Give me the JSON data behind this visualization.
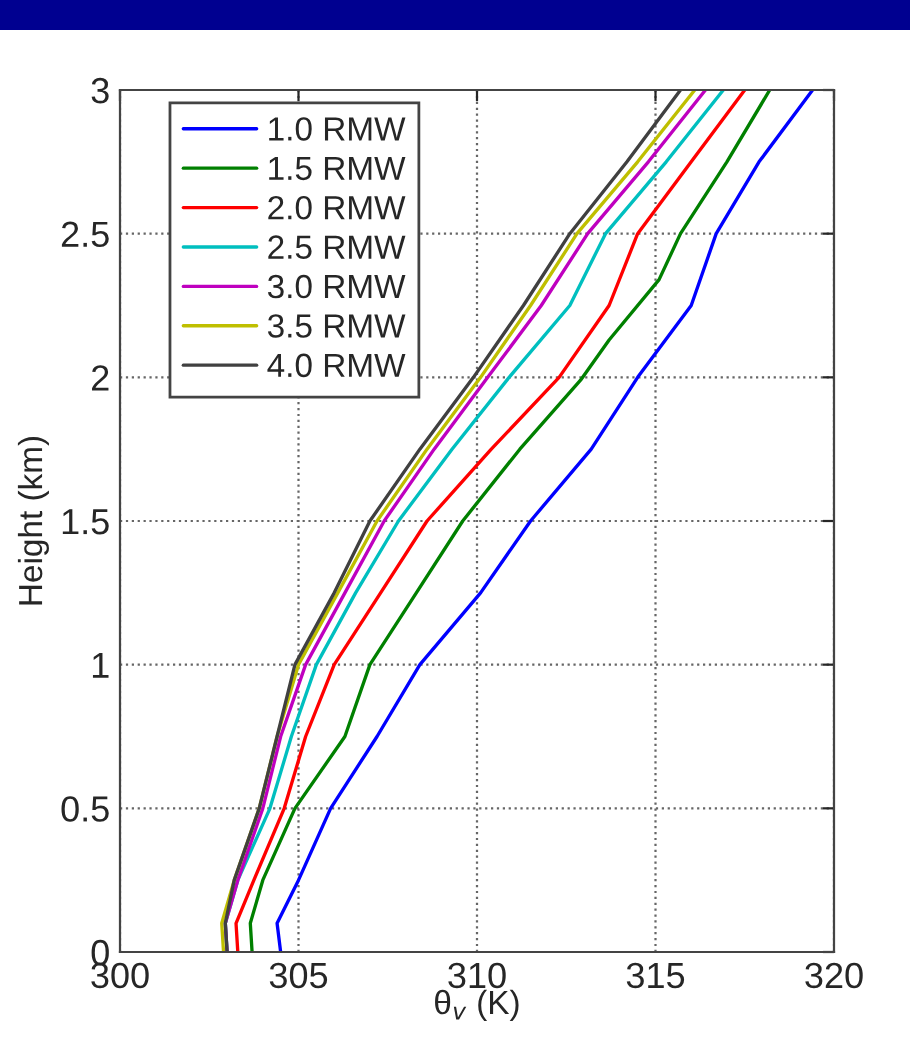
{
  "chart_data": {
    "type": "line",
    "xlabel": "θ$_{v}$ (K)",
    "ylabel": "Height (km)",
    "xlim": [
      300,
      320
    ],
    "xticks": [
      300,
      305,
      310,
      315,
      320
    ],
    "ylim": [
      0,
      3
    ],
    "yticks": [
      0,
      0.5,
      1,
      1.5,
      2,
      2.5,
      3
    ],
    "grid": true,
    "legend": "top left",
    "line_style": "solid",
    "marker": "none",
    "series": [
      {
        "name": "1.0 RMW",
        "color": "#0000ff",
        "x": [
          304.5,
          304.4,
          305.0,
          305.9,
          307.2,
          308.4,
          310.1,
          311.5,
          313.2,
          314.5,
          316.0,
          316.7,
          317.9,
          319.4
        ],
        "values": [
          0,
          0.1,
          0.25,
          0.5,
          0.75,
          1.0,
          1.25,
          1.5,
          1.75,
          2.0,
          2.25,
          2.5,
          2.75,
          3.0
        ]
      },
      {
        "name": "1.5 RMW",
        "color": "#008000",
        "x": [
          303.7,
          303.65,
          304.0,
          304.9,
          306.3,
          307.0,
          308.3,
          309.6,
          311.2,
          312.9,
          313.7,
          315.1,
          315.7,
          317.0,
          318.2
        ],
        "values": [
          0,
          0.1,
          0.25,
          0.5,
          0.75,
          1.0,
          1.25,
          1.5,
          1.75,
          1.99,
          2.13,
          2.34,
          2.5,
          2.75,
          3.0
        ]
      },
      {
        "name": "2.0 RMW",
        "color": "#ff0000",
        "x": [
          303.3,
          303.25,
          303.75,
          304.6,
          305.2,
          306.0,
          307.3,
          308.6,
          310.4,
          312.3,
          313.7,
          314.5,
          316.0,
          317.5
        ],
        "values": [
          0,
          0.1,
          0.25,
          0.5,
          0.75,
          1.0,
          1.25,
          1.5,
          1.75,
          2.0,
          2.25,
          2.5,
          2.75,
          3.0
        ]
      },
      {
        "name": "2.5 RMW",
        "color": "#00bfbf",
        "x": [
          303.0,
          302.95,
          303.3,
          304.2,
          304.8,
          305.5,
          306.6,
          307.8,
          309.3,
          310.9,
          312.6,
          313.6,
          315.3,
          316.9
        ],
        "values": [
          0,
          0.1,
          0.25,
          0.5,
          0.75,
          1.0,
          1.25,
          1.5,
          1.75,
          2.0,
          2.25,
          2.5,
          2.75,
          3.0
        ]
      },
      {
        "name": "3.0 RMW",
        "color": "#bf00bf",
        "x": [
          303.0,
          302.95,
          303.3,
          304.0,
          304.5,
          305.2,
          306.3,
          307.4,
          308.8,
          310.3,
          311.8,
          313.1,
          314.8,
          316.4
        ],
        "values": [
          0,
          0.1,
          0.25,
          0.5,
          0.75,
          1.0,
          1.25,
          1.5,
          1.75,
          2.0,
          2.25,
          2.5,
          2.75,
          3.0
        ]
      },
      {
        "name": "3.5 RMW",
        "color": "#bfbf00",
        "x": [
          302.9,
          302.85,
          303.2,
          303.9,
          304.4,
          305.0,
          306.1,
          307.2,
          308.6,
          310.1,
          311.5,
          312.8,
          314.5,
          316.1
        ],
        "values": [
          0,
          0.1,
          0.25,
          0.5,
          0.75,
          1.0,
          1.25,
          1.5,
          1.75,
          2.0,
          2.25,
          2.5,
          2.75,
          3.0
        ]
      },
      {
        "name": "4.0 RMW",
        "color": "#404040",
        "x": [
          303.0,
          302.95,
          303.2,
          303.9,
          304.4,
          304.9,
          306.0,
          307.0,
          308.4,
          309.9,
          311.3,
          312.6,
          314.2,
          315.7
        ],
        "values": [
          0,
          0.1,
          0.25,
          0.5,
          0.75,
          1.0,
          1.25,
          1.5,
          1.75,
          2.0,
          2.25,
          2.5,
          2.75,
          3.0
        ]
      }
    ]
  }
}
